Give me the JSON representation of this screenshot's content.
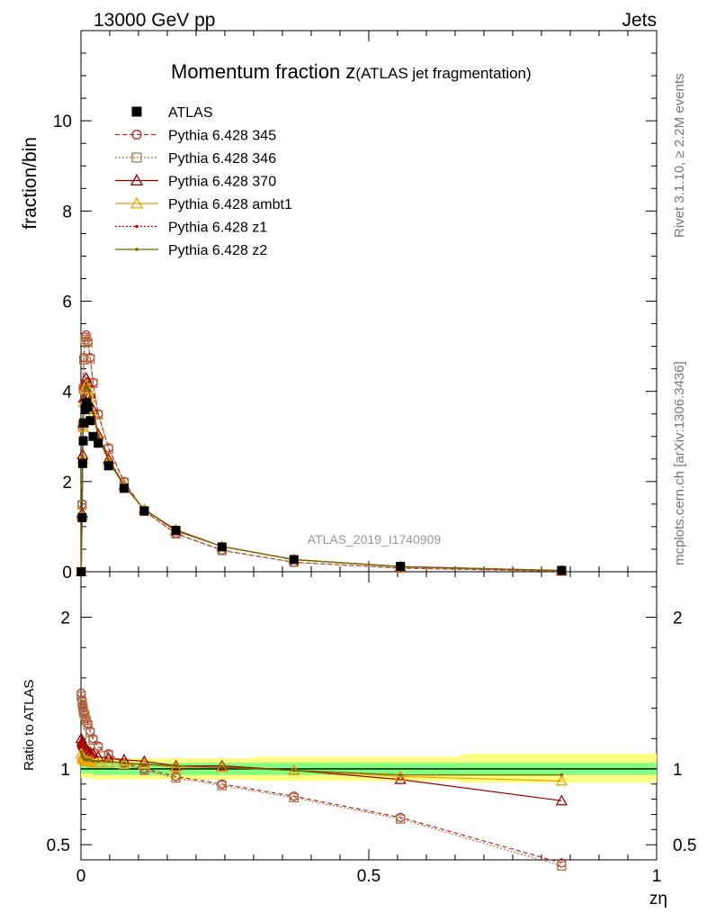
{
  "header": {
    "left": "13000 GeV pp",
    "right": "Jets"
  },
  "side_labels": {
    "rivet": "Rivet 3.1.10, ≥ 2.2M events",
    "mcplots": "mcplots.cern.ch [arXiv:1306.3436]"
  },
  "analysis_id": "ATLAS_2019_I1740909",
  "chart_data": {
    "type": "scatter",
    "title": "Momentum fraction z",
    "title_suffix": "(ATLAS jet fragmentation)",
    "xlabel": "zη",
    "ylabel": "fraction/bin",
    "ratio_ylabel": "Ratio to ATLAS",
    "xlim": [
      0,
      1
    ],
    "ylim": [
      0,
      12
    ],
    "ratio_ylim": [
      0.4,
      2.3
    ],
    "x_ticks": [
      "0",
      "0.5",
      "1"
    ],
    "y_ticks": [
      "0",
      "2",
      "4",
      "6",
      "8",
      "10"
    ],
    "ratio_ticks": [
      "0.5",
      "1",
      "2"
    ],
    "legend_position": "top-left",
    "x": [
      0.0005,
      0.002,
      0.003,
      0.004,
      0.005,
      0.007,
      0.009,
      0.012,
      0.016,
      0.021,
      0.03,
      0.048,
      0.075,
      0.11,
      0.165,
      0.245,
      0.37,
      0.555,
      0.835
    ],
    "series": [
      {
        "name": "ATLAS",
        "color": "#000000",
        "marker": "square-filled",
        "line": "none",
        "values": [
          0.0,
          1.2,
          2.4,
          2.9,
          3.3,
          3.6,
          3.75,
          3.65,
          3.35,
          3.0,
          2.85,
          2.35,
          1.85,
          1.35,
          0.92,
          0.55,
          0.27,
          0.12,
          0.03
        ]
      },
      {
        "name": "Pythia 6.428 345",
        "color": "#b03030",
        "marker": "circle-open",
        "line": "dashed",
        "values": [
          0.0,
          1.5,
          3.3,
          4.1,
          4.75,
          5.2,
          5.25,
          5.1,
          4.75,
          4.2,
          3.5,
          2.75,
          2.0,
          1.35,
          0.85,
          0.48,
          0.21,
          0.08,
          0.012
        ]
      },
      {
        "name": "Pythia 6.428 346",
        "color": "#b07040",
        "marker": "square-open",
        "line": "dotted",
        "values": [
          0.0,
          1.48,
          3.25,
          4.05,
          4.7,
          5.15,
          5.2,
          5.08,
          4.72,
          4.18,
          3.48,
          2.72,
          1.98,
          1.34,
          0.84,
          0.47,
          0.21,
          0.08,
          0.011
        ]
      },
      {
        "name": "Pythia 6.428 370",
        "color": "#990000",
        "marker": "triangle-open",
        "line": "solid",
        "values": [
          0.0,
          1.3,
          2.6,
          3.3,
          3.85,
          4.15,
          4.3,
          4.2,
          3.95,
          3.6,
          3.05,
          2.5,
          1.92,
          1.38,
          0.91,
          0.56,
          0.27,
          0.11,
          0.024
        ]
      },
      {
        "name": "Pythia 6.428 ambt1",
        "color": "#f0a000",
        "marker": "triangle-open",
        "line": "solid",
        "values": [
          0.0,
          1.25,
          2.5,
          3.2,
          3.75,
          4.05,
          4.15,
          4.05,
          3.85,
          3.5,
          3.0,
          2.45,
          1.9,
          1.38,
          0.93,
          0.56,
          0.27,
          0.115,
          0.028
        ]
      },
      {
        "name": "Pythia 6.428 z1",
        "color": "#c00000",
        "marker": "dot",
        "line": "dotted",
        "values": [
          0.0,
          1.26,
          2.55,
          3.22,
          3.78,
          4.08,
          4.18,
          4.08,
          3.88,
          3.52,
          3.02,
          2.46,
          1.91,
          1.38,
          0.93,
          0.56,
          0.27,
          0.115,
          0.029
        ]
      },
      {
        "name": "Pythia 6.428 z2",
        "color": "#6b6b00",
        "marker": "dot",
        "line": "solid",
        "values": [
          0.0,
          1.26,
          2.55,
          3.22,
          3.78,
          4.08,
          4.18,
          4.08,
          3.88,
          3.52,
          3.02,
          2.46,
          1.91,
          1.38,
          0.93,
          0.56,
          0.27,
          0.115,
          0.029
        ]
      }
    ],
    "ratio_series": [
      {
        "name": "Pythia 6.428 345",
        "values": [
          1.5,
          1.45,
          1.42,
          1.4,
          1.38,
          1.36,
          1.33,
          1.3,
          1.25,
          1.2,
          1.15,
          1.1,
          1.04,
          1.0,
          0.95,
          0.9,
          0.82,
          0.68,
          0.38
        ]
      },
      {
        "name": "Pythia 6.428 346",
        "values": [
          1.48,
          1.44,
          1.41,
          1.39,
          1.37,
          1.35,
          1.32,
          1.29,
          1.24,
          1.19,
          1.14,
          1.09,
          1.03,
          0.99,
          0.94,
          0.89,
          0.81,
          0.67,
          0.36
        ]
      },
      {
        "name": "Pythia 6.428 370",
        "values": [
          1.2,
          1.18,
          1.17,
          1.16,
          1.15,
          1.14,
          1.13,
          1.12,
          1.11,
          1.1,
          1.08,
          1.07,
          1.06,
          1.05,
          1.02,
          1.02,
          0.99,
          0.93,
          0.79
        ]
      },
      {
        "name": "Pythia 6.428 ambt1",
        "values": [
          1.1,
          1.08,
          1.07,
          1.06,
          1.06,
          1.05,
          1.05,
          1.05,
          1.05,
          1.04,
          1.04,
          1.04,
          1.03,
          1.03,
          1.01,
          1.01,
          0.99,
          0.95,
          0.92
        ]
      },
      {
        "name": "Pythia 6.428 z1",
        "values": [
          1.11,
          1.09,
          1.08,
          1.07,
          1.07,
          1.06,
          1.06,
          1.06,
          1.06,
          1.05,
          1.05,
          1.05,
          1.04,
          1.03,
          1.02,
          1.01,
          0.99,
          0.96,
          0.96
        ]
      },
      {
        "name": "Pythia 6.428 z2",
        "values": [
          1.11,
          1.09,
          1.08,
          1.07,
          1.07,
          1.06,
          1.06,
          1.06,
          1.06,
          1.05,
          1.05,
          1.05,
          1.04,
          1.03,
          1.02,
          1.01,
          0.99,
          0.96,
          0.96
        ]
      }
    ],
    "band": {
      "edges": [
        0,
        0.02,
        0.05,
        0.1,
        0.2,
        0.3,
        0.45,
        0.66,
        1.0
      ],
      "inner": [
        [
          0.97,
          1.03
        ],
        [
          0.96,
          1.04
        ],
        [
          0.96,
          1.04
        ],
        [
          0.96,
          1.04
        ],
        [
          0.96,
          1.04
        ],
        [
          0.96,
          1.04
        ],
        [
          0.96,
          1.04
        ],
        [
          0.96,
          1.04
        ]
      ],
      "outer": [
        [
          0.94,
          1.06
        ],
        [
          0.93,
          1.07
        ],
        [
          0.93,
          1.07
        ],
        [
          0.93,
          1.07
        ],
        [
          0.93,
          1.07
        ],
        [
          0.92,
          1.08
        ],
        [
          0.92,
          1.08
        ],
        [
          0.91,
          1.1
        ]
      ],
      "inner_color": "#80ff80",
      "outer_color": "#ffff80"
    }
  }
}
